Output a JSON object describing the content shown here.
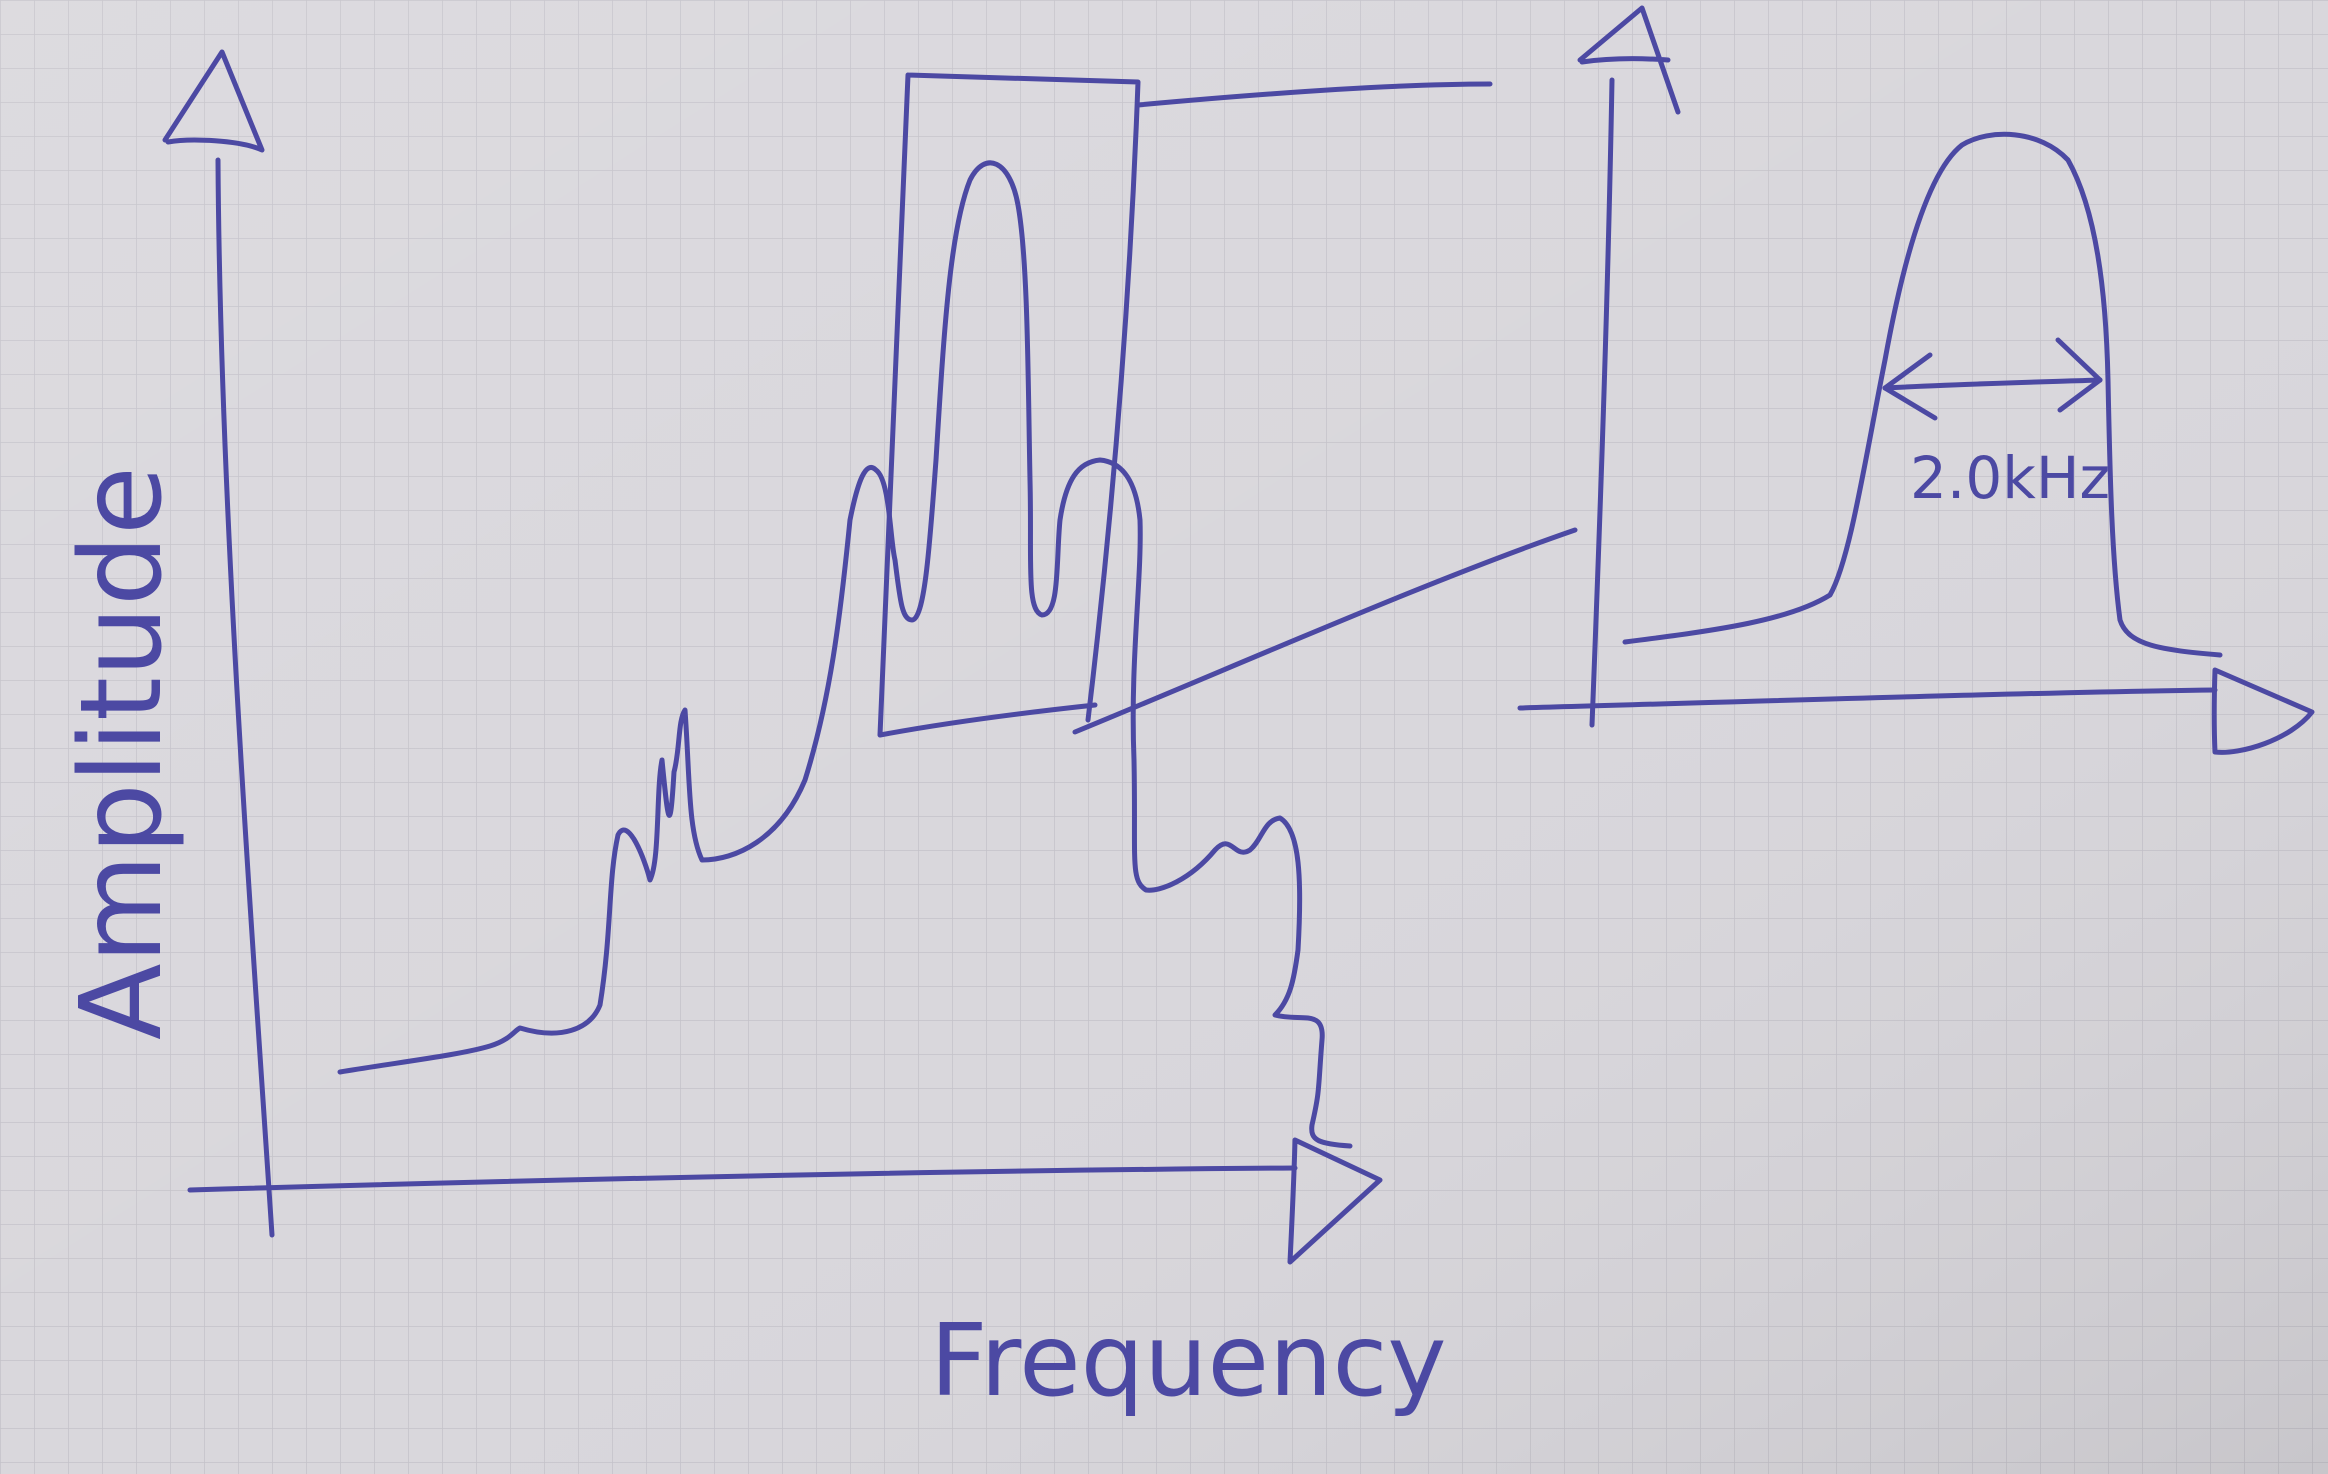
{
  "diagram": {
    "main_plot": {
      "y_axis_label": "Amplitude",
      "x_axis_label": "Frequency"
    },
    "zoom_plot": {
      "bandwidth_label": "2.0kHz"
    }
  },
  "colors": {
    "ink": "#4c49a3",
    "paper": "#d9d7dc",
    "grid": "#c4c2c9"
  }
}
